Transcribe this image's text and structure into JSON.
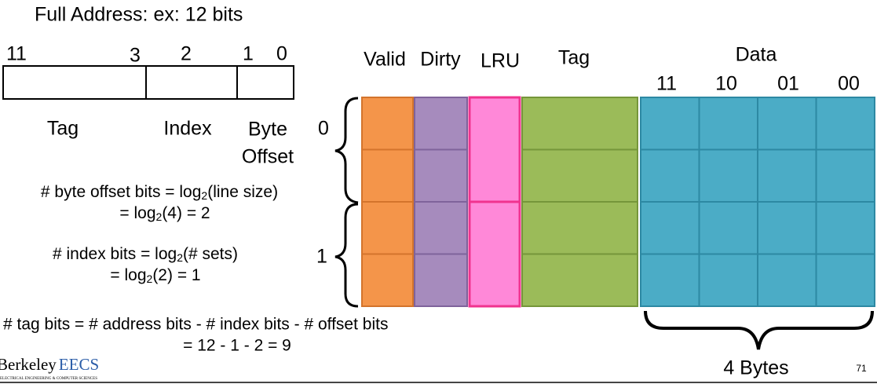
{
  "title": "Full Address: ex: 12 bits",
  "address": {
    "bit_labels": [
      "11",
      "3",
      "2",
      "1",
      "0"
    ],
    "fields": [
      [
        "Tag"
      ],
      [
        "Index"
      ],
      [
        "Byte",
        "Offset"
      ]
    ]
  },
  "formulas": [
    [
      [
        "# byte offset bits = log",
        "2",
        "(line size)"
      ],
      [
        "= log",
        "2",
        "(4) = 2"
      ]
    ],
    [
      [
        "# index bits = log",
        "2",
        "(# sets)"
      ],
      [
        "= log",
        "2",
        "(2) = 1"
      ]
    ],
    [
      [
        "# tag bits = # address bits - # index bits - # offset bits"
      ],
      [
        "= 12 - 1 - 2 = 9"
      ]
    ]
  ],
  "cache": {
    "columns": [
      "Valid",
      "Dirty",
      "LRU",
      "Tag",
      "Data"
    ],
    "data_columns": [
      "11",
      "10",
      "01",
      "00"
    ],
    "sets": [
      "0",
      "1"
    ],
    "brace_label": "4 Bytes"
  },
  "footer": {
    "logo": {
      "name": "Berkeley",
      "dept": "EECS",
      "subtitle": "ELECTRICAL ENGINEERING & COMPUTER SCIENCES"
    },
    "page_number": "71"
  }
}
